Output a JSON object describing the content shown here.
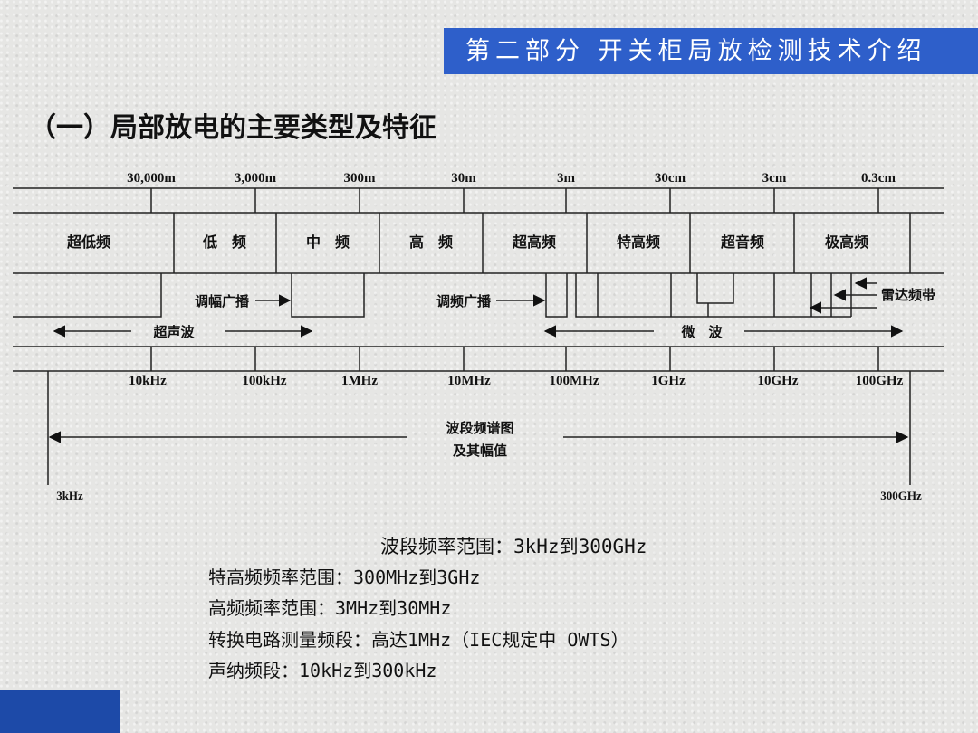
{
  "header": {
    "section_title": "第二部分 开关柜局放检测技术介绍"
  },
  "title": "（一）局部放电的主要类型及特征",
  "diagram": {
    "wavelengths": [
      "30,000m",
      "3,000m",
      "300m",
      "30m",
      "3m",
      "30cm",
      "3cm",
      "0.3cm"
    ],
    "bands": [
      "超低频",
      "低　频",
      "中　频",
      "高　频",
      "超高频",
      "特高频",
      "超音频",
      "极高频"
    ],
    "frequencies": [
      "10kHz",
      "100kHz",
      "1MHz",
      "10MHz",
      "100MHz",
      "1GHz",
      "10GHz",
      "100GHz"
    ],
    "am_broadcast": "调幅广播",
    "fm_broadcast": "调频广播",
    "radar_band": "雷达频带",
    "ultrasonic": "超声波",
    "microwave": "微　波",
    "spectrum_caption_1": "波段频谱图",
    "spectrum_caption_2": "及其幅值",
    "range_start": "3kHz",
    "range_end": "300GHz"
  },
  "notes": [
    "波段频率范围：3kHz到300GHz",
    "特高频频率范围：300MHz到3GHz",
    "高频频率范围：3MHz到30MHz",
    "转换电路测量频段：高达1MHz（IEC规定中 OWTS）",
    "声纳频段：10kHz到300kHz"
  ],
  "colors": {
    "header_bg": "#2e5fca",
    "corner_block": "#1d4aa8"
  }
}
